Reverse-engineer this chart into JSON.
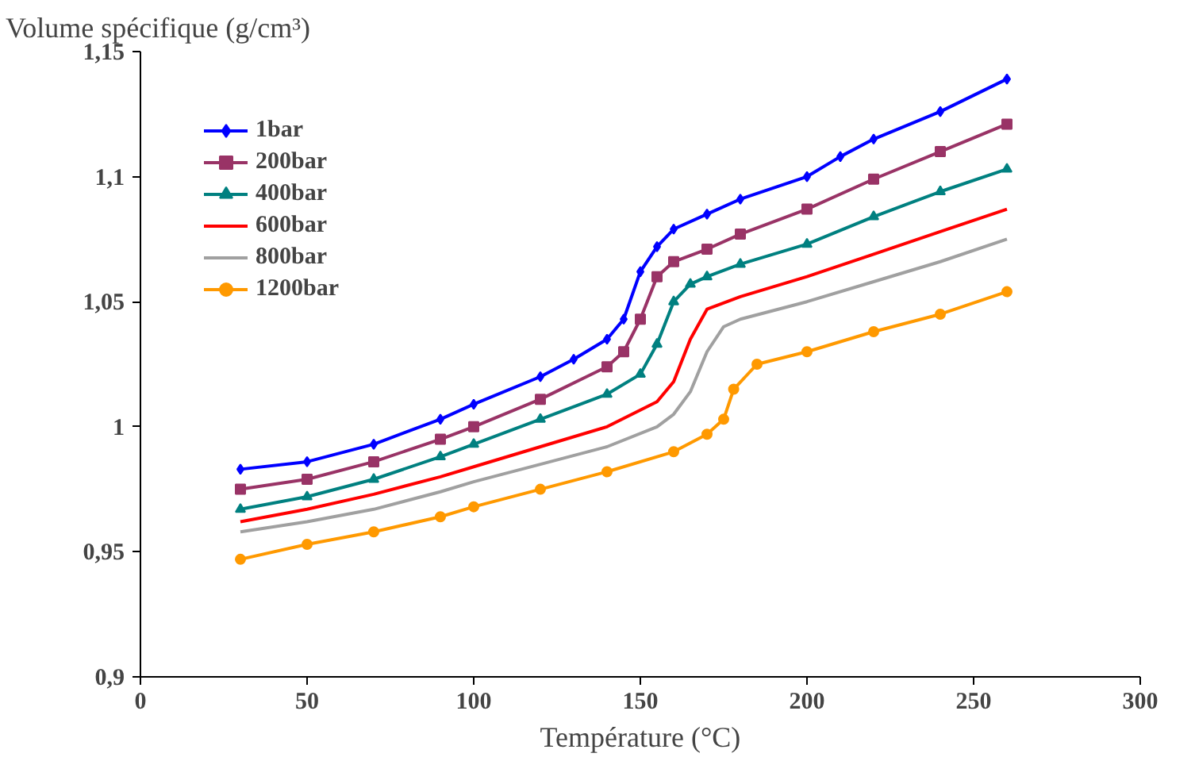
{
  "chart_data": {
    "type": "line",
    "ylabel": "Volume spécifique (g/cm³)",
    "xlabel": "Température (°C)",
    "xlim": [
      0,
      300
    ],
    "xticks": [
      0,
      50,
      100,
      150,
      200,
      250,
      300
    ],
    "ylim": [
      0.9,
      1.15
    ],
    "yticks": [
      {
        "value": 0.9,
        "label": "0,9"
      },
      {
        "value": 0.95,
        "label": "0,95"
      },
      {
        "value": 1,
        "label": "1"
      },
      {
        "value": 1.05,
        "label": "1,05"
      },
      {
        "value": 1.1,
        "label": "1,1"
      },
      {
        "value": 1.15,
        "label": "1,15"
      }
    ],
    "grid": false,
    "legend": "top left",
    "line_style": "solid",
    "series": [
      {
        "name": "1bar",
        "color": "#0000ff",
        "marker": "diamond",
        "x": [
          30,
          50,
          70,
          90,
          100,
          120,
          130,
          140,
          145,
          150,
          155,
          160,
          170,
          180,
          200,
          210,
          220,
          240,
          260
        ],
        "values": [
          0.983,
          0.986,
          0.993,
          1.003,
          1.009,
          1.02,
          1.027,
          1.035,
          1.043,
          1.062,
          1.072,
          1.079,
          1.085,
          1.091,
          1.1,
          1.108,
          1.115,
          1.126,
          1.139
        ]
      },
      {
        "name": "200bar",
        "color": "#993366",
        "marker": "square",
        "x": [
          30,
          50,
          70,
          90,
          100,
          120,
          140,
          145,
          150,
          155,
          160,
          170,
          180,
          200,
          220,
          240,
          260
        ],
        "values": [
          0.975,
          0.979,
          0.986,
          0.995,
          1.0,
          1.011,
          1.024,
          1.03,
          1.043,
          1.06,
          1.066,
          1.071,
          1.077,
          1.087,
          1.099,
          1.11,
          1.121
        ]
      },
      {
        "name": "400bar",
        "color": "#008080",
        "marker": "triangle",
        "x": [
          30,
          50,
          70,
          90,
          100,
          120,
          140,
          150,
          155,
          160,
          165,
          170,
          180,
          200,
          220,
          240,
          260
        ],
        "values": [
          0.967,
          0.972,
          0.979,
          0.988,
          0.993,
          1.003,
          1.013,
          1.021,
          1.033,
          1.05,
          1.057,
          1.06,
          1.065,
          1.073,
          1.084,
          1.094,
          1.103
        ]
      },
      {
        "name": "600bar",
        "color": "#ff0000",
        "marker": "none",
        "x": [
          30,
          50,
          70,
          90,
          100,
          120,
          140,
          155,
          160,
          165,
          170,
          180,
          200,
          220,
          240,
          260
        ],
        "values": [
          0.962,
          0.967,
          0.973,
          0.98,
          0.984,
          0.992,
          1.0,
          1.01,
          1.018,
          1.035,
          1.047,
          1.052,
          1.06,
          1.069,
          1.078,
          1.087
        ]
      },
      {
        "name": "800bar",
        "color": "#a0a0a0",
        "marker": "none",
        "x": [
          30,
          50,
          70,
          90,
          100,
          120,
          140,
          155,
          160,
          165,
          170,
          175,
          180,
          200,
          220,
          240,
          260
        ],
        "values": [
          0.958,
          0.962,
          0.967,
          0.974,
          0.978,
          0.985,
          0.992,
          1.0,
          1.005,
          1.014,
          1.03,
          1.04,
          1.043,
          1.05,
          1.058,
          1.066,
          1.075
        ]
      },
      {
        "name": "1200bar",
        "color": "#ff9900",
        "marker": "circle",
        "x": [
          30,
          50,
          70,
          90,
          100,
          120,
          140,
          160,
          170,
          175,
          178,
          185,
          200,
          220,
          240,
          260
        ],
        "values": [
          0.947,
          0.953,
          0.958,
          0.964,
          0.968,
          0.975,
          0.982,
          0.99,
          0.997,
          1.003,
          1.015,
          1.025,
          1.03,
          1.038,
          1.045,
          1.054
        ]
      }
    ]
  }
}
